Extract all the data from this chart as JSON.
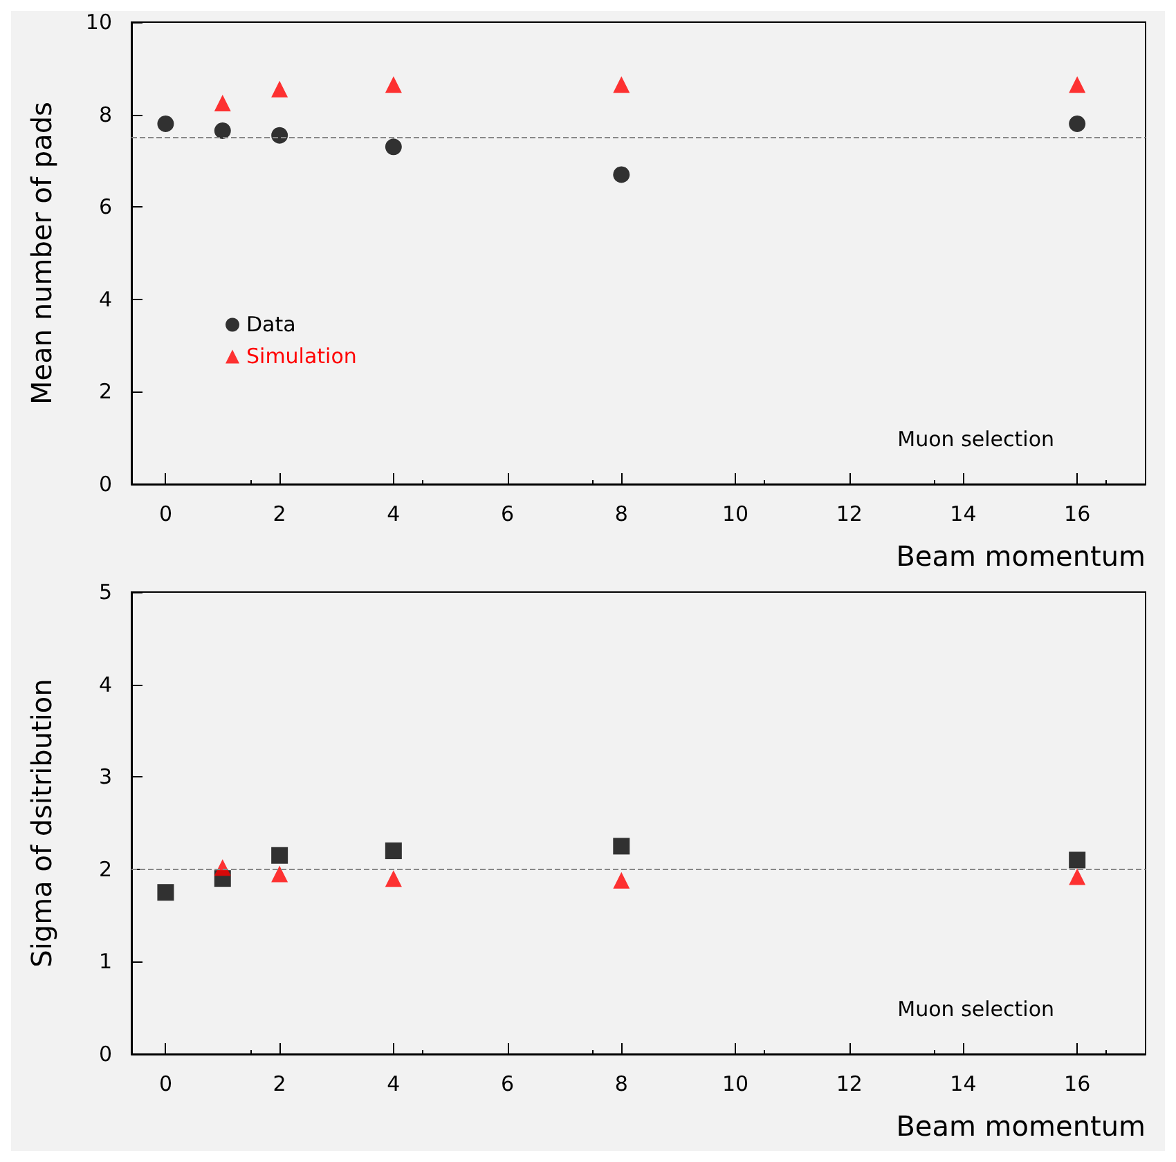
{
  "chart_data": [
    {
      "type": "scatter",
      "xlabel": "Beam momentum",
      "ylabel": "Mean number of pads",
      "annotations": [
        "Muon selection"
      ],
      "xlim": [
        -0.6,
        17.2
      ],
      "xticks": [
        0,
        2,
        4,
        6,
        8,
        10,
        12,
        14,
        16
      ],
      "ylim": [
        0,
        10
      ],
      "yticks": [
        0,
        2,
        4,
        6,
        8,
        10
      ],
      "grid": false,
      "legend": "left",
      "ref_lines": [
        {
          "axis": "y",
          "value": 7.5,
          "color": "#888888",
          "line_style": "dashed"
        }
      ],
      "series": [
        {
          "name": "Data",
          "color": "#000000",
          "marker": "circle",
          "x": [
            0,
            1,
            2,
            4,
            8,
            16
          ],
          "values": [
            7.8,
            7.65,
            7.55,
            7.3,
            6.7,
            7.8
          ]
        },
        {
          "name": "Simulation",
          "color": "#ff0000",
          "marker": "triangle",
          "x": [
            1,
            2,
            4,
            8,
            16
          ],
          "values": [
            8.25,
            8.55,
            8.65,
            8.65,
            8.65
          ]
        }
      ]
    },
    {
      "type": "scatter",
      "xlabel": "Beam momentum",
      "ylabel": "Sigma of dsitribution",
      "annotations": [
        "Muon selection"
      ],
      "xlim": [
        -0.6,
        17.2
      ],
      "xticks": [
        0,
        2,
        4,
        6,
        8,
        10,
        12,
        14,
        16
      ],
      "ylim": [
        0,
        5
      ],
      "yticks": [
        0,
        1,
        2,
        3,
        4,
        5
      ],
      "grid": false,
      "legend": false,
      "ref_lines": [
        {
          "axis": "y",
          "value": 2,
          "color": "#888888",
          "line_style": "dashed"
        }
      ],
      "series": [
        {
          "color": "#000000",
          "marker": "square",
          "x": [
            0,
            1,
            2,
            4,
            8,
            16
          ],
          "values": [
            1.75,
            1.9,
            2.15,
            2.2,
            2.25,
            2.1
          ]
        },
        {
          "color": "#ff0000",
          "marker": "triangle",
          "x": [
            1,
            2,
            4,
            8,
            16
          ],
          "values": [
            2.02,
            1.95,
            1.9,
            1.88,
            1.92
          ]
        }
      ]
    }
  ]
}
